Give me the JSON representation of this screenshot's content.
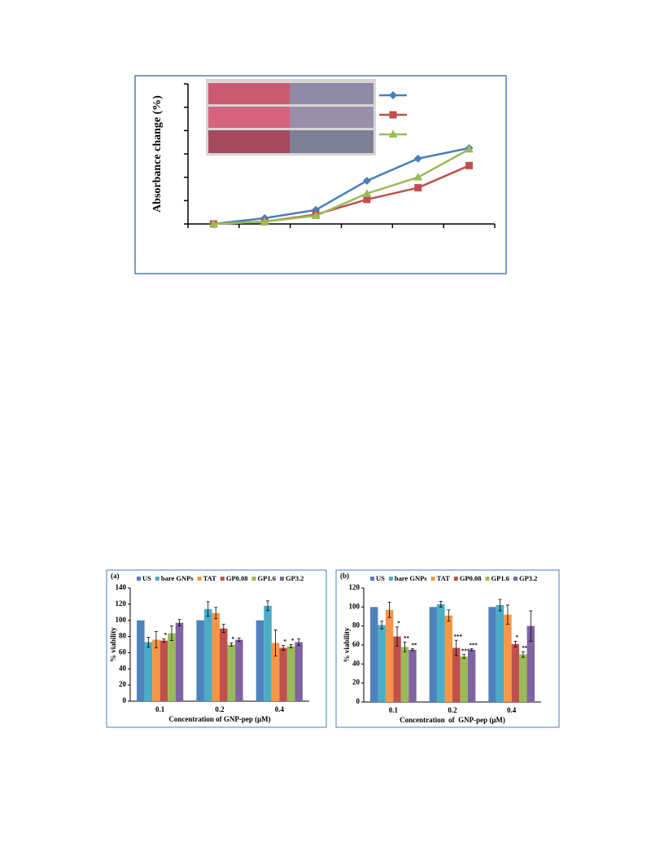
{
  "chart_data": [
    {
      "type": "line",
      "y_label": "Absorbance change (%)",
      "categories": [
        null,
        null,
        null,
        null,
        null,
        null
      ],
      "ylim": [
        0,
        60
      ],
      "yticks": [
        0,
        10,
        20,
        30,
        40,
        50,
        60
      ],
      "show_tick_labels": false,
      "series": [
        {
          "color": "#4a7ebb",
          "marker": "diamond",
          "values": [
            0,
            2.5,
            6,
            18.5,
            28,
            32.5
          ]
        },
        {
          "color": "#c0504d",
          "marker": "square",
          "values": [
            0,
            1,
            4,
            10.5,
            15.5,
            25
          ]
        },
        {
          "color": "#9bbb59",
          "marker": "triangle",
          "values": [
            0,
            1,
            3.5,
            13,
            20,
            32
          ]
        }
      ]
    },
    {
      "type": "bar",
      "panel": "(a)",
      "x_label": "Concentration of GNP-pep (μM)",
      "y_label": "% viability",
      "categories": [
        "0.1",
        "0.2",
        "0.4"
      ],
      "ylim": [
        0,
        140
      ],
      "yticks": [
        0,
        20,
        40,
        60,
        80,
        100,
        120,
        140
      ],
      "series": [
        {
          "name": "US",
          "color": "#4f81bd",
          "values": [
            100,
            100,
            100
          ],
          "errors": [
            0,
            0,
            0
          ],
          "stars": [
            null,
            null,
            null
          ]
        },
        {
          "name": "bare GNPs",
          "color": "#4bacc6",
          "values": [
            73,
            114,
            118
          ],
          "errors": [
            6,
            9,
            6
          ],
          "stars": [
            null,
            null,
            null
          ]
        },
        {
          "name": "TAT",
          "color": "#f79646",
          "values": [
            76,
            109,
            72
          ],
          "errors": [
            10,
            7,
            16
          ],
          "stars": [
            null,
            null,
            null
          ]
        },
        {
          "name": "GP0.08",
          "color": "#c0504d",
          "values": [
            75,
            90,
            66
          ],
          "errors": [
            2,
            5,
            3
          ],
          "stars": [
            "*",
            null,
            "*"
          ]
        },
        {
          "name": "GP1.6",
          "color": "#9bbb59",
          "values": [
            84,
            70,
            68
          ],
          "errors": [
            9,
            2,
            2
          ],
          "stars": [
            null,
            "*",
            "*"
          ]
        },
        {
          "name": "GP3.2",
          "color": "#8064a2",
          "values": [
            97,
            76,
            73
          ],
          "errors": [
            4,
            2,
            4
          ],
          "stars": [
            null,
            null,
            null
          ]
        }
      ]
    },
    {
      "type": "bar",
      "panel": "(b)",
      "x_label": "Concentration  of  GNP-pep (μM)",
      "y_label": "% viability",
      "categories": [
        "0.1",
        "0.2",
        "0.4"
      ],
      "ylim": [
        0,
        120
      ],
      "yticks": [
        0,
        20,
        40,
        60,
        80,
        100,
        120
      ],
      "series": [
        {
          "name": "US",
          "color": "#4f81bd",
          "values": [
            100,
            100,
            100
          ],
          "errors": [
            0,
            0,
            0
          ],
          "stars": [
            null,
            null,
            null
          ]
        },
        {
          "name": "bare GNPs",
          "color": "#4bacc6",
          "values": [
            81,
            103,
            102
          ],
          "errors": [
            4,
            3,
            6
          ],
          "stars": [
            null,
            null,
            null
          ]
        },
        {
          "name": "TAT",
          "color": "#f79646",
          "values": [
            97,
            91,
            92
          ],
          "errors": [
            8,
            6,
            10
          ],
          "stars": [
            null,
            null,
            null
          ]
        },
        {
          "name": "GP0.08",
          "color": "#c0504d",
          "values": [
            69,
            57,
            61
          ],
          "errors": [
            10,
            8,
            3
          ],
          "stars": [
            "*",
            "***",
            "*"
          ]
        },
        {
          "name": "GP1.6",
          "color": "#9bbb59",
          "values": [
            58,
            48,
            50
          ],
          "errors": [
            5,
            2,
            3
          ],
          "stars": [
            "**",
            "***",
            "**"
          ]
        },
        {
          "name": "GP3.2",
          "color": "#8064a2",
          "values": [
            55,
            55,
            80
          ],
          "errors": [
            1,
            1,
            16
          ],
          "stars": [
            "**",
            "***",
            null
          ]
        }
      ]
    }
  ]
}
